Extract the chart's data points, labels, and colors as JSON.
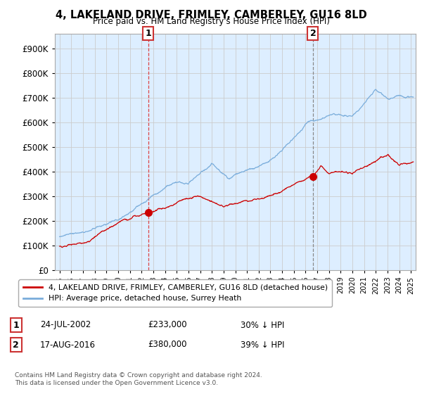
{
  "title": "4, LAKELAND DRIVE, FRIMLEY, CAMBERLEY, GU16 8LD",
  "subtitle": "Price paid vs. HM Land Registry's House Price Index (HPI)",
  "ytick_values": [
    0,
    100000,
    200000,
    300000,
    400000,
    500000,
    600000,
    700000,
    800000,
    900000
  ],
  "ylim": [
    0,
    960000
  ],
  "xlim_start": 1994.6,
  "xlim_end": 2025.4,
  "sale1_x": 2002.558,
  "sale1_y": 233000,
  "sale2_x": 2016.628,
  "sale2_y": 380000,
  "sale1_label": "1",
  "sale2_label": "2",
  "sale1_date": "24-JUL-2002",
  "sale1_price": "£233,000",
  "sale1_hpi": "30% ↓ HPI",
  "sale2_date": "17-AUG-2016",
  "sale2_price": "£380,000",
  "sale2_hpi": "39% ↓ HPI",
  "line_house_color": "#cc0000",
  "line_hpi_color": "#7aaddb",
  "vline1_color": "#dd4444",
  "vline2_color": "#888888",
  "chart_bg_color": "#ddeeff",
  "legend_house_label": "4, LAKELAND DRIVE, FRIMLEY, CAMBERLEY, GU16 8LD (detached house)",
  "legend_hpi_label": "HPI: Average price, detached house, Surrey Heath",
  "footer": "Contains HM Land Registry data © Crown copyright and database right 2024.\nThis data is licensed under the Open Government Licence v3.0.",
  "background_color": "#ffffff",
  "grid_color": "#cccccc"
}
